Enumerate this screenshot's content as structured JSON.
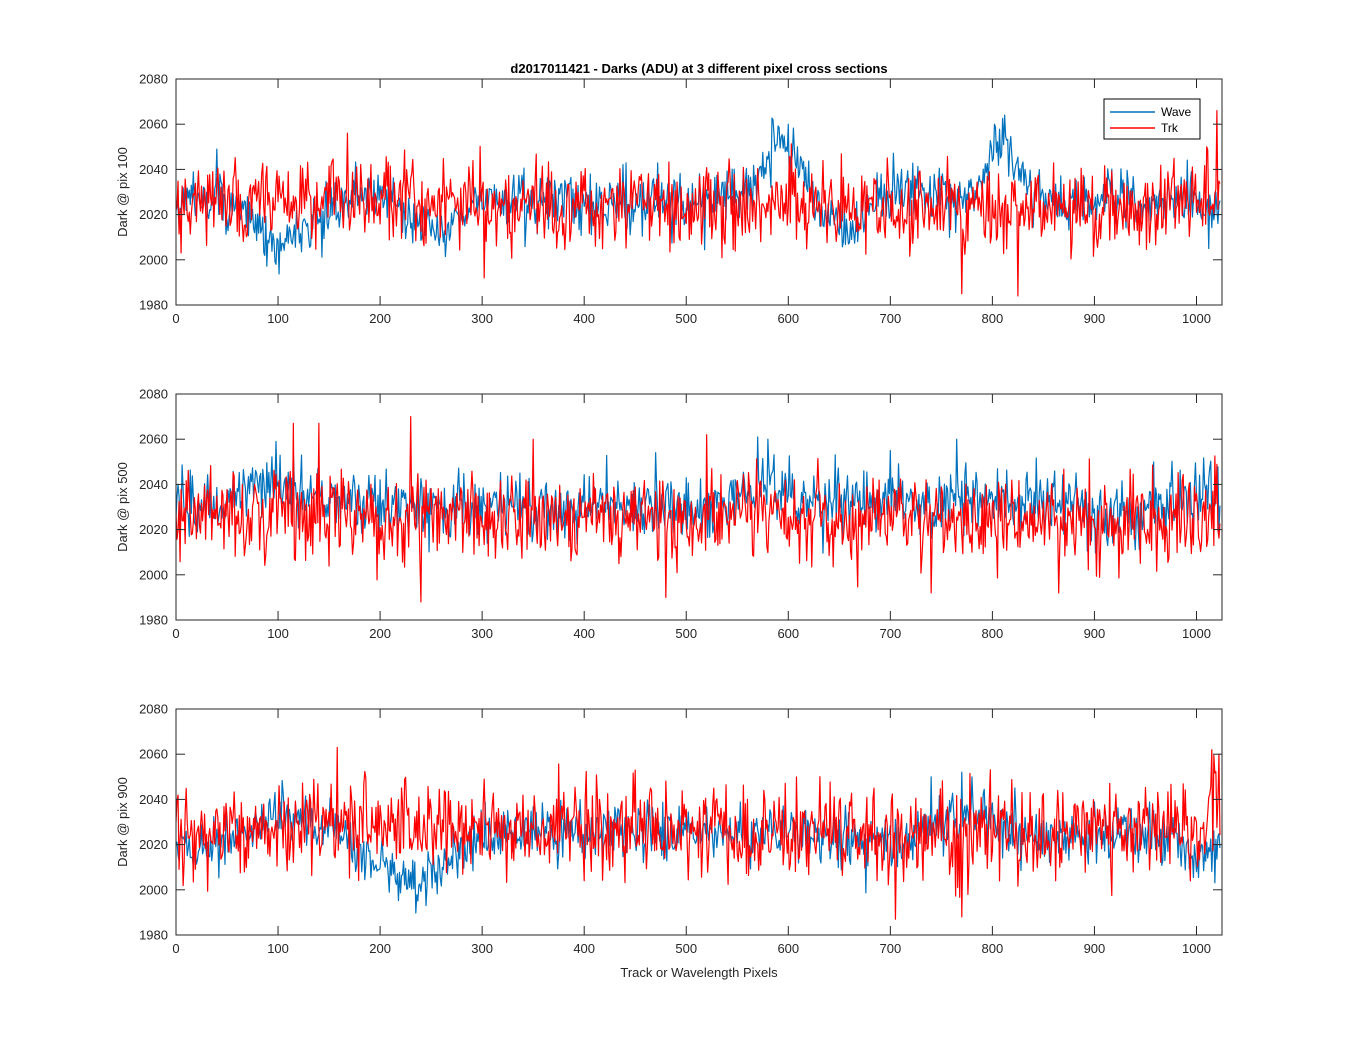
{
  "figure": {
    "title": "d2017011421 - Darks (ADU) at 3 different pixel cross sections",
    "xlabel": "Track or Wavelength Pixels"
  },
  "chart_data": {
    "type": "line",
    "x_range": [
      0,
      1023
    ],
    "xlim": [
      0,
      1025
    ],
    "xticks": [
      0,
      100,
      200,
      300,
      400,
      500,
      600,
      700,
      800,
      900,
      1000
    ],
    "ylim": [
      1980,
      2080
    ],
    "yticks": [
      1980,
      2000,
      2020,
      2040,
      2060,
      2080
    ],
    "grid": false,
    "legend": {
      "position": "top-right",
      "entries": [
        "Wave",
        "Trk"
      ]
    },
    "colors": {
      "Wave": "#0072BD",
      "Trk": "#FF0000"
    },
    "panels": [
      {
        "ylabel": "Dark @ pix 100",
        "series": [
          {
            "name": "Wave",
            "anchors_x": [
              0,
              10,
              30,
              50,
              80,
              100,
              120,
              150,
              180,
              200,
              220,
              240,
              260,
              280,
              300,
              350,
              400,
              450,
              500,
              550,
              575,
              590,
              605,
              625,
              650,
              665,
              690,
              710,
              740,
              770,
              790,
              800,
              815,
              830,
              860,
              900,
              950,
              1000,
              1023
            ],
            "anchors_y": [
              2025,
              2024,
              2030,
              2025,
              2015,
              2005,
              2012,
              2020,
              2030,
              2030,
              2025,
              2015,
              2010,
              2022,
              2026,
              2026,
              2026,
              2025,
              2026,
              2028,
              2035,
              2055,
              2048,
              2028,
              2014,
              2014,
              2028,
              2033,
              2031,
              2029,
              2034,
              2048,
              2052,
              2033,
              2025,
              2025,
              2026,
              2025,
              2020
            ],
            "noise": 6,
            "spikes": [
              [
                40,
                2049
              ],
              [
                98,
                1998
              ],
              [
                585,
                2062
              ],
              [
                600,
                2060
              ],
              [
                802,
                2060
              ],
              [
                812,
                2064
              ],
              [
                1012,
                2005
              ]
            ]
          },
          {
            "name": "Trk",
            "anchors_x": [
              0,
              50,
              100,
              150,
              200,
              300,
              400,
              500,
              600,
              700,
              800,
              900,
              1000,
              1023
            ],
            "anchors_y": [
              2025,
              2027,
              2027,
              2028,
              2027,
              2025,
              2024,
              2024,
              2023,
              2022,
              2022,
              2023,
              2025,
              2030
            ],
            "noise": 9,
            "spikes": [
              [
                5,
                2003
              ],
              [
                168,
                2056
              ],
              [
                302,
                1992
              ],
              [
                770,
                1985
              ],
              [
                825,
                1984
              ],
              [
                1010,
                2050
              ],
              [
                1020,
                2066
              ]
            ]
          }
        ]
      },
      {
        "ylabel": "Dark @ pix 500",
        "series": [
          {
            "name": "Wave",
            "anchors_x": [
              0,
              50,
              80,
              100,
              150,
              200,
              250,
              300,
              350,
              400,
              450,
              500,
              550,
              580,
              600,
              650,
              700,
              750,
              780,
              800,
              850,
              900,
              950,
              1000,
              1023
            ],
            "anchors_y": [
              2030,
              2032,
              2040,
              2040,
              2035,
              2030,
              2030,
              2030,
              2031,
              2030,
              2031,
              2030,
              2031,
              2042,
              2035,
              2030,
              2032,
              2030,
              2040,
              2035,
              2032,
              2025,
              2028,
              2035,
              2033
            ],
            "noise": 7,
            "spikes": [
              [
                98,
                2059
              ],
              [
                470,
                2054
              ],
              [
                570,
                2061
              ],
              [
                580,
                2060
              ],
              [
                765,
                2060
              ],
              [
                700,
                2055
              ]
            ]
          },
          {
            "name": "Trk",
            "anchors_x": [
              0,
              100,
              200,
              300,
              400,
              500,
              600,
              700,
              800,
              900,
              1000,
              1023
            ],
            "anchors_y": [
              2025,
              2027,
              2026,
              2025,
              2025,
              2024,
              2025,
              2024,
              2023,
              2023,
              2025,
              2028
            ],
            "noise": 10,
            "spikes": [
              [
                115,
                2067
              ],
              [
                140,
                2067
              ],
              [
                230,
                2070
              ],
              [
                240,
                1988
              ],
              [
                350,
                2060
              ],
              [
                480,
                1990
              ],
              [
                520,
                2062
              ],
              [
                740,
                1992
              ]
            ]
          }
        ]
      },
      {
        "ylabel": "Dark @ pix 900",
        "series": [
          {
            "name": "Wave",
            "anchors_x": [
              0,
              20,
              50,
              90,
              110,
              150,
              180,
              210,
              240,
              270,
              300,
              350,
              400,
              450,
              500,
              550,
              600,
              650,
              700,
              740,
              770,
              800,
              850,
              900,
              950,
              980,
              1000,
              1023
            ],
            "anchors_y": [
              2022,
              2016,
              2022,
              2032,
              2030,
              2028,
              2015,
              2008,
              2003,
              2015,
              2023,
              2026,
              2026,
              2026,
              2026,
              2026,
              2026,
              2022,
              2020,
              2028,
              2032,
              2030,
              2022,
              2024,
              2026,
              2022,
              2010,
              2022
            ],
            "noise": 6,
            "spikes": [
              [
                245,
                1993
              ],
              [
                740,
                2050
              ],
              [
                770,
                2052
              ],
              [
                780,
                2050
              ]
            ]
          },
          {
            "name": "Trk",
            "anchors_x": [
              0,
              100,
              200,
              300,
              400,
              500,
              600,
              700,
              800,
              900,
              1000,
              1023
            ],
            "anchors_y": [
              2025,
              2028,
              2030,
              2028,
              2027,
              2026,
              2026,
              2024,
              2024,
              2025,
              2030,
              2035
            ],
            "noise": 10,
            "spikes": [
              [
                158,
                2063
              ],
              [
                705,
                1987
              ],
              [
                770,
                1988
              ],
              [
                1015,
                2062
              ],
              [
                1022,
                2060
              ]
            ]
          }
        ]
      }
    ]
  }
}
